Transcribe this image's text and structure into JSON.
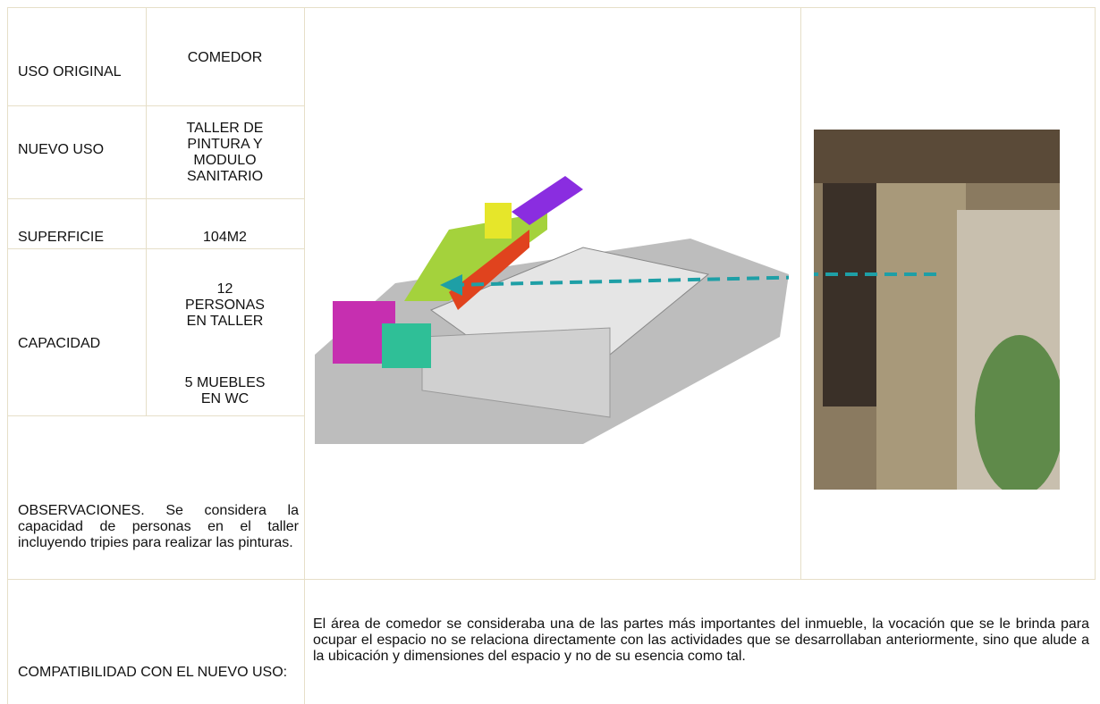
{
  "rows": [
    {
      "label": "USO ORIGINAL",
      "value": "COMEDOR"
    },
    {
      "label": "NUEVO USO",
      "value": "TALLER DE PINTURA Y MODULO SANITARIO"
    },
    {
      "label": "SUPERFICIE",
      "value": "104M2"
    },
    {
      "label": "CAPACIDAD",
      "values": [
        "12 PERSONAS EN TALLER",
        "5 MUEBLES EN WC"
      ]
    }
  ],
  "observaciones": "OBSERVACIONES. Se considera la capacidad de personas en el taller incluyendo tripies para realizar las pinturas.",
  "compatibilidad": {
    "label": "COMPATIBILIDAD CON EL NUEVO USO:",
    "text": "El área de comedor se consideraba una de las partes más importantes del inmueble, la vocación que se le brinda para ocupar el espacio no se relaciona directamente con las actividades que se desarrollaban anteriormente, sino que alude a la ubicación y dimensiones del espacio y no de su esencia como tal."
  }
}
